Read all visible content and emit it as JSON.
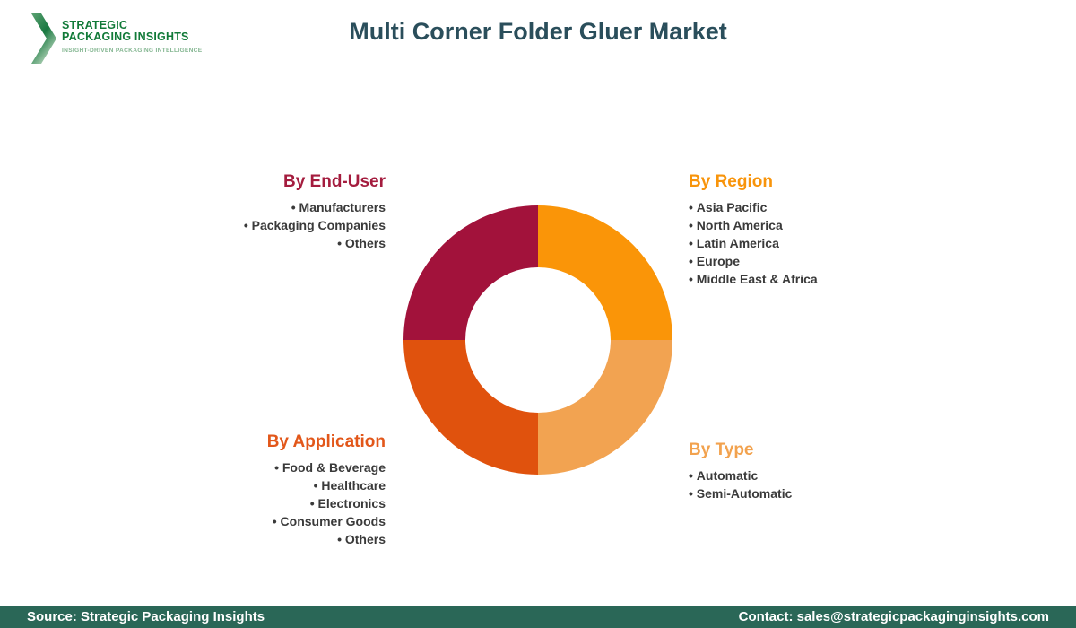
{
  "header": {
    "logo": {
      "name_line1": "STRATEGIC",
      "name_line2": "PACKAGING INSIGHTS",
      "tagline": "INSIGHT-DRIVEN PACKAGING INTELLIGENCE",
      "brand_green": "#117A38"
    },
    "title": "Multi Corner Folder Gluer Market",
    "title_color": "#2A4E5B"
  },
  "chart_data": {
    "type": "pie",
    "subtype": "donut",
    "title": "Multi Corner Folder Gluer Market",
    "legend_position": "around-chart",
    "grid": false,
    "segments": [
      {
        "label": "By Region",
        "value": 25,
        "color": "#FA9508",
        "position": "top-right"
      },
      {
        "label": "By Type",
        "value": 25,
        "color": "#F2A351",
        "position": "bottom-right"
      },
      {
        "label": "By Application",
        "value": 25,
        "color": "#E0520D",
        "position": "bottom-left"
      },
      {
        "label": "By End-User",
        "value": 25,
        "color": "#A2123B",
        "position": "top-left"
      }
    ]
  },
  "sections": {
    "end_user": {
      "heading": "By End-User",
      "color": "#A41C3E",
      "items": [
        "Manufacturers",
        "Packaging Companies",
        "Others"
      ]
    },
    "region": {
      "heading": "By Region",
      "color": "#F8940B",
      "items": [
        "Asia Pacific",
        "North America",
        "Latin America",
        "Europe",
        "Middle East & Africa"
      ]
    },
    "application": {
      "heading": "By Application",
      "color": "#E2571A",
      "items": [
        "Food & Beverage",
        "Healthcare",
        "Electronics",
        "Consumer Goods",
        "Others"
      ]
    },
    "type": {
      "heading": "By Type",
      "color": "#F2A24E",
      "items": [
        "Automatic",
        "Semi-Automatic"
      ]
    }
  },
  "footer": {
    "source": "Source: Strategic Packaging Insights",
    "contact": "Contact: sales@strategicpackaginginsights.com",
    "background": "#2A6757"
  }
}
